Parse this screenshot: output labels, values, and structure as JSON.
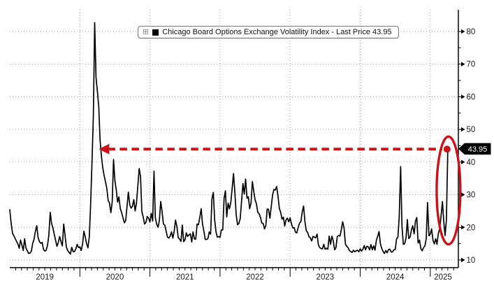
{
  "legend": {
    "label": "Chicago Board Options Exchange Volatility Index - Last Price 43.95",
    "swatch_color": "#000000",
    "grid_icon": "⊞"
  },
  "axis": {
    "last_price_label": "43.95",
    "y_ticks": [
      10,
      20,
      30,
      40,
      50,
      60,
      70,
      80
    ],
    "x_ticks": [
      "2019",
      "2020",
      "2021",
      "2022",
      "2023",
      "2024",
      "2025"
    ]
  },
  "colors": {
    "line": "#000000",
    "annotation_red": "#c81419",
    "grid": "#9a9a9a",
    "badge_bg": "#000000",
    "badge_text": "#ffffff"
  },
  "annotations": {
    "dashed_arrow": {
      "level": 43.95,
      "to_year": 2020.27,
      "from_year": 2025.19,
      "direction": "left"
    },
    "end_dot": {
      "year": 2025.24,
      "level": 43.95
    },
    "ellipse": {
      "center_year": 2025.26,
      "center_value": 31.3,
      "rx_years": 0.169,
      "ry_values": 16.5
    }
  },
  "chart_data": {
    "type": "line",
    "title": "Chicago Board Options Exchange Volatility Index",
    "series_name": "VIX Index - Last Price",
    "last_price": 43.95,
    "xlabel": "",
    "ylabel": "",
    "ylim": [
      8,
      85
    ],
    "x_range_years": [
      2019.0,
      2025.25
    ],
    "y_axis_side": "right",
    "grid": "dotted",
    "legend_position": "top-center",
    "x_start_year": 2019,
    "points_per_year": 52,
    "values": [
      25.4,
      21.4,
      18.2,
      17.4,
      16.6,
      15.7,
      14.9,
      13.6,
      16.1,
      14.5,
      12.9,
      16.5,
      13.7,
      12.8,
      12.0,
      12.1,
      12.7,
      15.1,
      16.3,
      18.7,
      20.5,
      16.9,
      15.6,
      15.1,
      15.4,
      13.3,
      12.7,
      13.0,
      14.5,
      17.6,
      24.6,
      21.2,
      19.9,
      17.8,
      16.0,
      14.2,
      15.3,
      17.2,
      15.6,
      14.3,
      21.0,
      17.5,
      13.9,
      12.9,
      12.3,
      11.8,
      13.9,
      12.5,
      12.6,
      13.4,
      14.8,
      13.8,
      14.0,
      12.9,
      14.9,
      18.8,
      17.1,
      15.0,
      13.7,
      17.1,
      27.0,
      40.1,
      54.0,
      82.7,
      66.0,
      61.6,
      57.1,
      46.8,
      41.7,
      38.2,
      35.9,
      34.0,
      31.9,
      28.2,
      27.5,
      24.5,
      27.8,
      40.8,
      34.4,
      31.5,
      27.7,
      29.3,
      25.7,
      24.5,
      22.9,
      21.4,
      22.1,
      26.4,
      30.8,
      26.9,
      25.9,
      26.4,
      28.5,
      25.0,
      27.4,
      32.5,
      38.0,
      35.6,
      24.9,
      23.1,
      21.0,
      21.5,
      23.3,
      22.8,
      21.6,
      24.3,
      21.9,
      37.2,
      23.0,
      21.0,
      20.0,
      22.1,
      27.9,
      24.7,
      21.0,
      20.7,
      18.9,
      17.0,
      16.7,
      17.3,
      18.6,
      16.7,
      18.8,
      22.2,
      20.2,
      16.8,
      16.4,
      15.7,
      20.7,
      15.6,
      16.2,
      18.3,
      17.2,
      17.7,
      18.0,
      15.5,
      18.6,
      16.4,
      16.4,
      21.0,
      20.8,
      23.1,
      25.7,
      21.1,
      18.8,
      16.3,
      16.3,
      16.5,
      18.6,
      17.9,
      28.6,
      30.7,
      22.3,
      18.7,
      17.0,
      17.2,
      16.9,
      19.2,
      19.2,
      28.9,
      31.2,
      23.2,
      27.4,
      25.7,
      27.6,
      32.0,
      36.5,
      30.8,
      23.9,
      20.8,
      21.2,
      22.7,
      28.2,
      33.4,
      30.2,
      34.8,
      28.9,
      29.4,
      25.7,
      27.5,
      34.0,
      31.1,
      28.4,
      27.2,
      24.6,
      24.2,
      23.0,
      21.3,
      21.2,
      19.5,
      20.6,
      25.6,
      25.5,
      22.8,
      26.3,
      29.9,
      31.6,
      31.4,
      32.5,
      29.7,
      25.8,
      24.6,
      22.5,
      23.1,
      20.4,
      22.3,
      22.8,
      21.7,
      22.9,
      21.1,
      19.8,
      19.9,
      18.5,
      18.3,
      20.0,
      21.3,
      21.7,
      24.8,
      26.5,
      21.7,
      19.0,
      18.4,
      17.1,
      16.8,
      15.8,
      17.2,
      17.0,
      16.8,
      17.9,
      14.6,
      13.8,
      13.5,
      13.4,
      14.8,
      13.3,
      13.6,
      13.3,
      17.3,
      14.8,
      17.3,
      15.9,
      13.1,
      13.8,
      17.2,
      17.5,
      17.3,
      19.3,
      21.7,
      19.8,
      14.9,
      14.2,
      13.8,
      12.9,
      12.6,
      12.3,
      13.0,
      12.5,
      12.8,
      13.0,
      12.5,
      13.4,
      12.7,
      13.3,
      14.4,
      13.1,
      14.2,
      14.0,
      13.1,
      14.7,
      13.1,
      14.3,
      13.0,
      16.0,
      17.3,
      18.7,
      15.0,
      13.5,
      12.6,
      12.0,
      12.9,
      12.2,
      13.2,
      13.3,
      12.4,
      12.5,
      13.1,
      13.2,
      16.5,
      17.0,
      23.4,
      38.6,
      20.4,
      14.8,
      15.0,
      16.7,
      22.4,
      16.6,
      17.0,
      19.2,
      20.5,
      18.0,
      21.9,
      23.0,
      15.2,
      16.1,
      13.5,
      12.8,
      13.8,
      14.3,
      16.5,
      27.6,
      17.4,
      17.9,
      19.5,
      16.0,
      14.9,
      16.5,
      14.8,
      18.2,
      19.6,
      23.4,
      27.9,
      21.8,
      17.5,
      22.3,
      43.95
    ]
  }
}
